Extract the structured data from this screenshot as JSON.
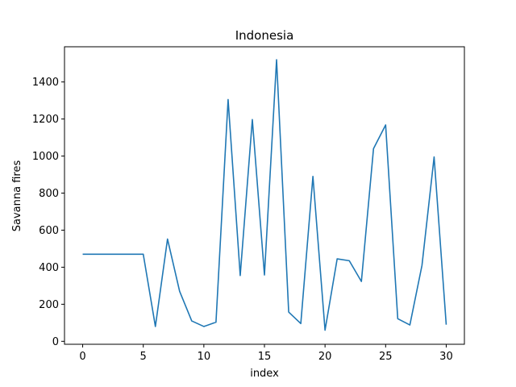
{
  "chart_data": {
    "type": "line",
    "title": "Indonesia",
    "xlabel": "index",
    "ylabel": "Savanna fires",
    "xlim": [
      -1.5,
      31.5
    ],
    "ylim": [
      -16,
      1590
    ],
    "xticks": [
      0,
      5,
      10,
      15,
      20,
      25,
      30
    ],
    "yticks": [
      0,
      200,
      400,
      600,
      800,
      1000,
      1200,
      1400
    ],
    "grid": false,
    "series": [
      {
        "color": "#1f77b4",
        "x": [
          0,
          1,
          2,
          3,
          4,
          5,
          6,
          7,
          8,
          9,
          10,
          11,
          12,
          13,
          14,
          15,
          16,
          17,
          18,
          19,
          20,
          21,
          22,
          23,
          24,
          25,
          26,
          27,
          28,
          29,
          30
        ],
        "values": [
          470,
          470,
          470,
          470,
          470,
          470,
          80,
          552,
          270,
          110,
          80,
          103,
          1305,
          355,
          1197,
          358,
          1520,
          158,
          96,
          890,
          60,
          445,
          435,
          323,
          1040,
          1168,
          122,
          88,
          410,
          995,
          90
        ]
      }
    ]
  }
}
